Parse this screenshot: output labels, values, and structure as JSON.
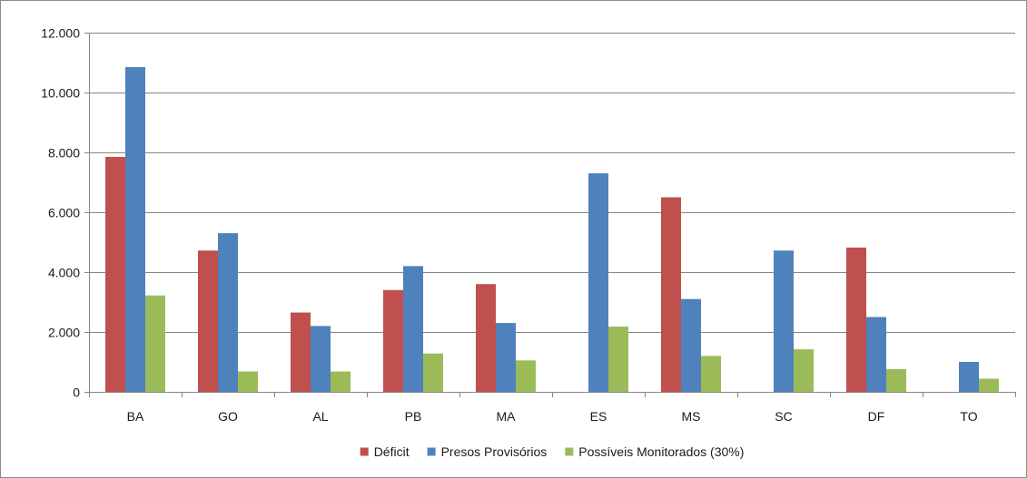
{
  "chart_data": {
    "type": "bar",
    "title": "",
    "xlabel": "",
    "ylabel": "",
    "categories": [
      "BA",
      "GO",
      "AL",
      "PB",
      "MA",
      "ES",
      "MS",
      "SC",
      "DF",
      "TO"
    ],
    "series": [
      {
        "name": "Déficit",
        "color": "#c0504d",
        "values": [
          7850,
          4720,
          2650,
          3400,
          3600,
          0,
          6500,
          0,
          4820,
          0
        ]
      },
      {
        "name": "Presos Provisórios",
        "color": "#4f81bd",
        "values": [
          10850,
          5300,
          2200,
          4200,
          2300,
          7300,
          3100,
          4720,
          2500,
          1000
        ]
      },
      {
        "name": "Possíveis Monitorados (30%)",
        "color": "#9bbb59",
        "values": [
          3220,
          680,
          680,
          1280,
          1050,
          2180,
          1200,
          1420,
          760,
          440
        ]
      }
    ],
    "ylim": [
      0,
      12000
    ],
    "yticks": [
      0,
      2000,
      4000,
      6000,
      8000,
      10000,
      12000
    ],
    "ytick_labels": [
      "0",
      "2.000",
      "4.000",
      "6.000",
      "8.000",
      "10.000",
      "12.000"
    ],
    "grid": true,
    "legend_position": "bottom"
  }
}
